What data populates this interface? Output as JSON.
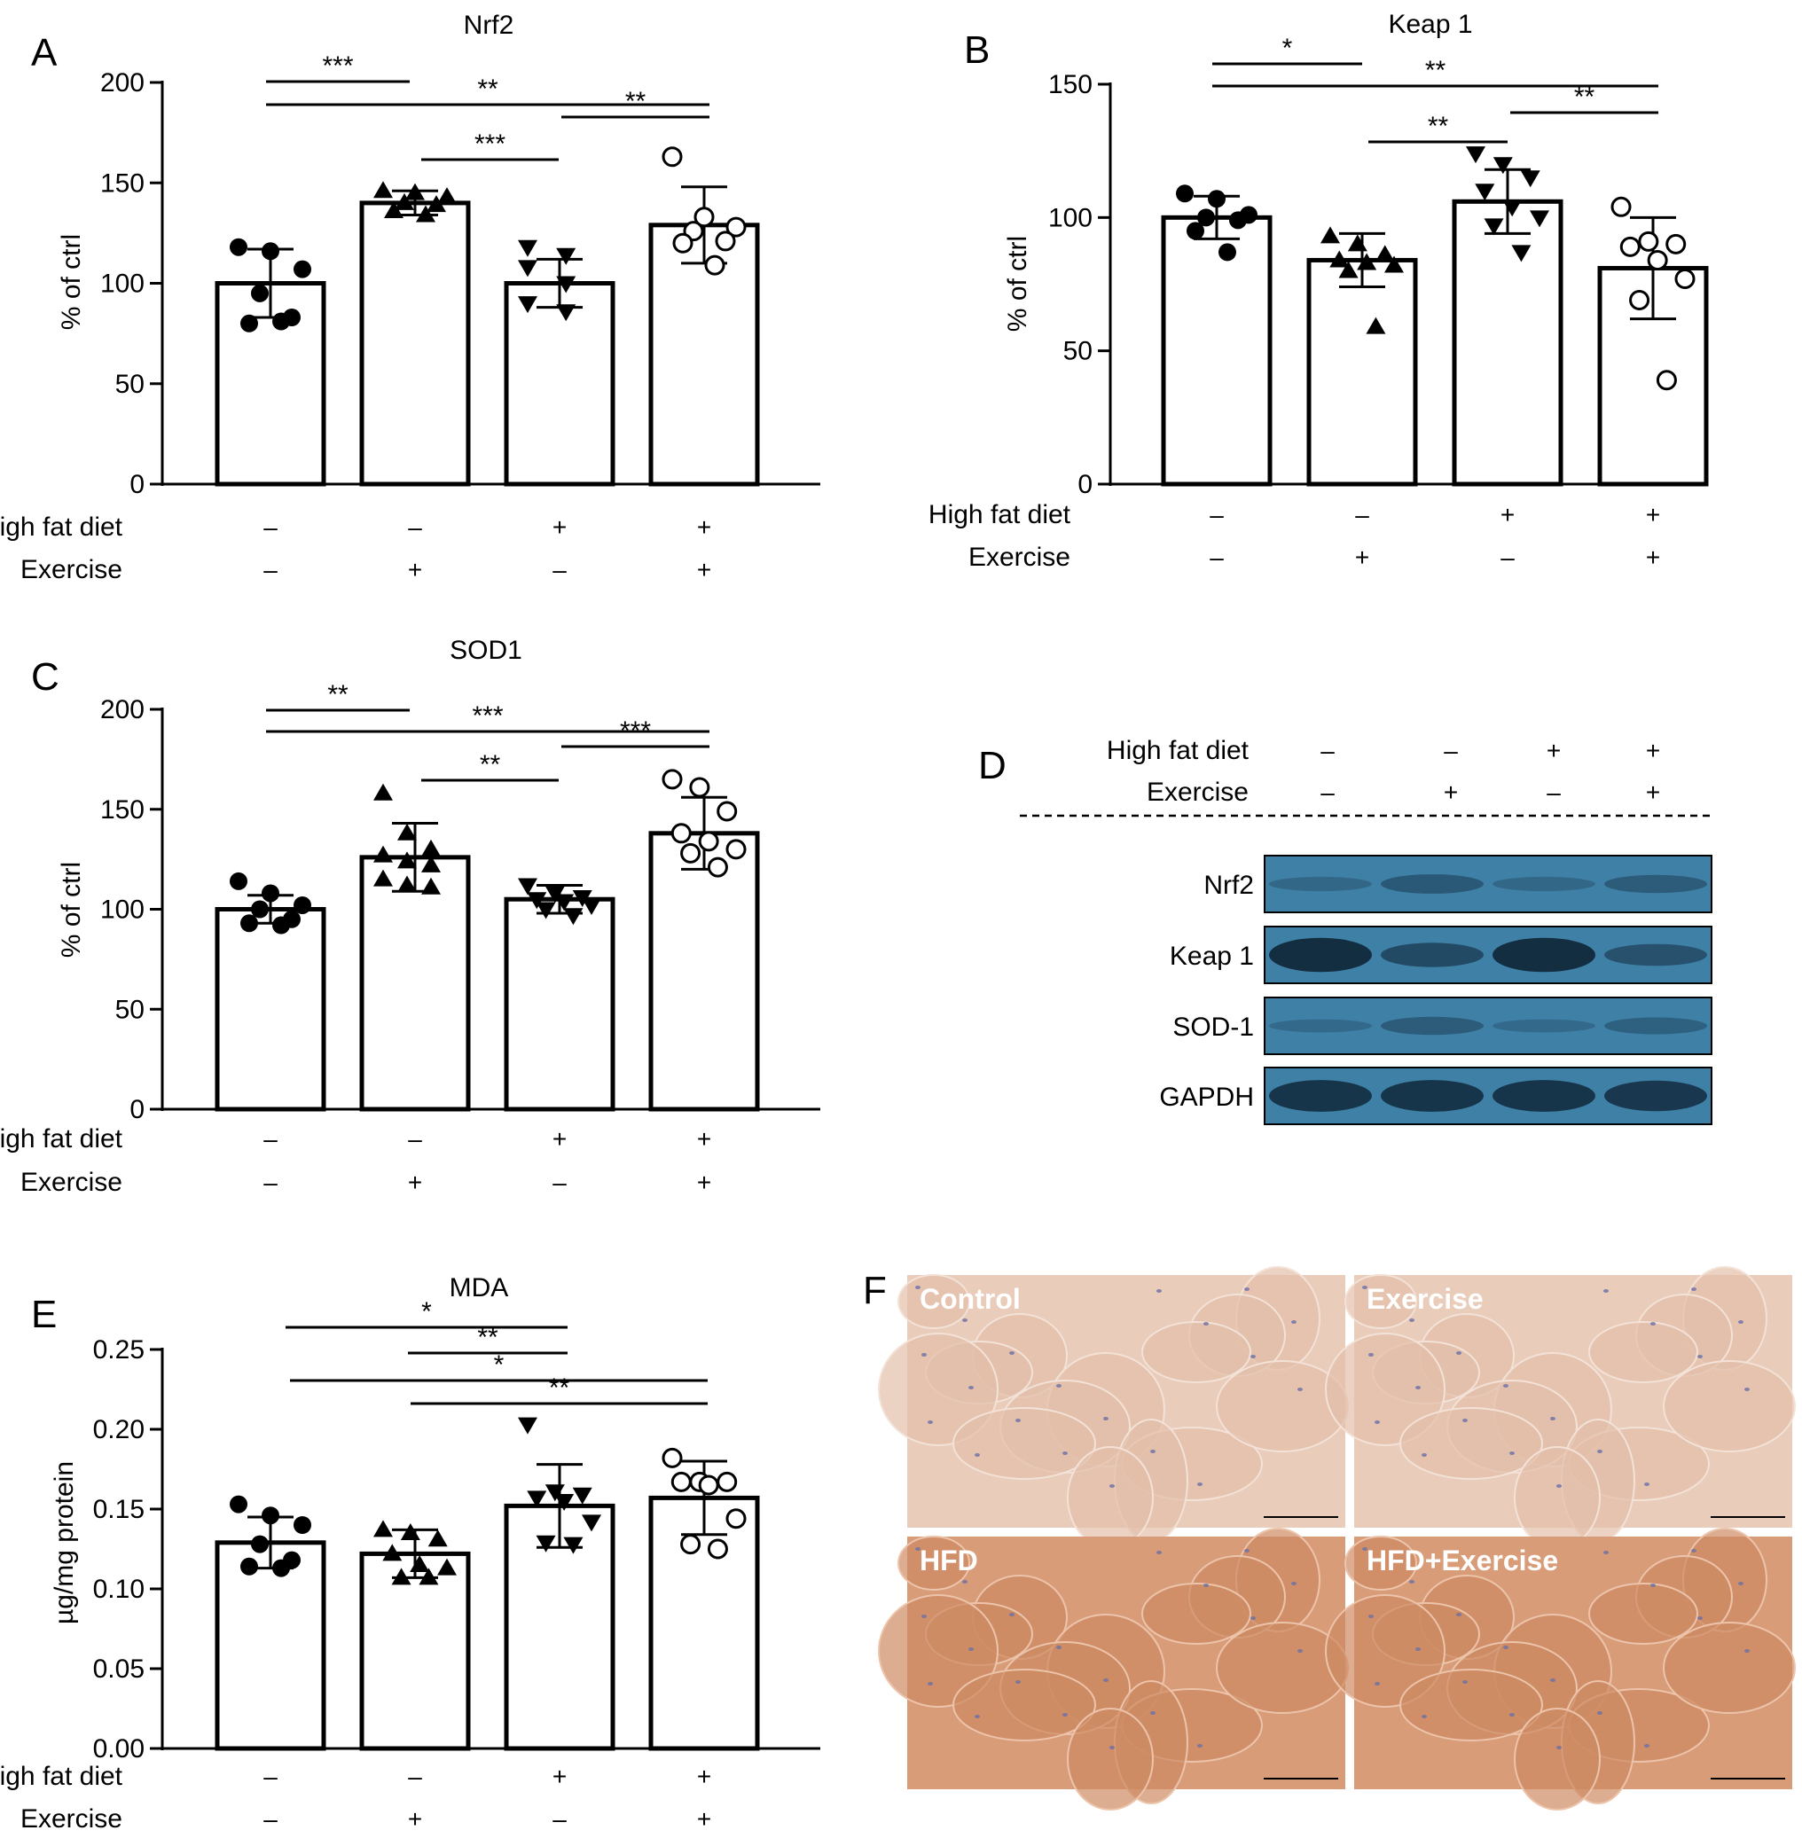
{
  "colors": {
    "ink": "#000000",
    "blot_bg": "#3f80a6",
    "band": "#0f2437",
    "tissue_light": "#e9ccba",
    "tissue_dark": "#d99c78"
  },
  "chart_data": [
    {
      "id": "A",
      "type": "bar",
      "panel_label": "A",
      "title": "Nrf2",
      "ylabel": "% of ctrl",
      "ylim": [
        0,
        200
      ],
      "yticks": [
        "0",
        "50",
        "100",
        "150",
        "200"
      ],
      "categories": [
        "ctrl",
        "ex",
        "hfd",
        "hfdex"
      ],
      "rows": [
        {
          "label": "High fat diet",
          "values": [
            "–",
            "–",
            "+",
            "+"
          ]
        },
        {
          "label": "Exercise",
          "values": [
            "–",
            "+",
            "–",
            "+"
          ]
        }
      ],
      "bars": [
        {
          "mean": 100,
          "sd": 17,
          "marker": "circle-filled",
          "points": [
            118,
            116,
            107,
            95,
            83,
            80,
            81
          ]
        },
        {
          "mean": 140,
          "sd": 6,
          "marker": "triangle-up",
          "points": [
            146,
            145,
            143,
            140,
            139,
            136,
            134
          ]
        },
        {
          "mean": 100,
          "sd": 12,
          "marker": "triangle-down",
          "points": [
            118,
            114,
            108,
            100,
            90,
            86
          ]
        },
        {
          "mean": 129,
          "sd": 19,
          "marker": "circle-open",
          "points": [
            163,
            133,
            128,
            126,
            121,
            120,
            109
          ]
        }
      ],
      "sig": [
        {
          "from": 0,
          "to": 1,
          "label": "***"
        },
        {
          "from": 0,
          "to": 3,
          "label": "**"
        },
        {
          "from": 1,
          "to": 2,
          "label": "***"
        },
        {
          "from": 2,
          "to": 3,
          "label": "**"
        }
      ]
    },
    {
      "id": "B",
      "type": "bar",
      "panel_label": "B",
      "title": "Keap 1",
      "ylabel": "% of ctrl",
      "ylim": [
        0,
        150
      ],
      "yticks": [
        "0",
        "50",
        "100",
        "150"
      ],
      "categories": [
        "ctrl",
        "ex",
        "hfd",
        "hfdex"
      ],
      "rows": [
        {
          "label": "High fat diet",
          "values": [
            "–",
            "–",
            "+",
            "+"
          ]
        },
        {
          "label": "Exercise",
          "values": [
            "–",
            "+",
            "–",
            "+"
          ]
        }
      ],
      "bars": [
        {
          "mean": 100,
          "sd": 8,
          "marker": "circle-filled",
          "points": [
            109,
            107,
            101,
            100,
            99,
            95,
            87
          ]
        },
        {
          "mean": 84,
          "sd": 10,
          "marker": "triangle-up",
          "points": [
            93,
            90,
            86,
            84,
            83,
            82,
            80,
            59
          ]
        },
        {
          "mean": 106,
          "sd": 12,
          "marker": "triangle-down",
          "points": [
            124,
            120,
            115,
            110,
            104,
            100,
            97,
            87
          ]
        },
        {
          "mean": 81,
          "sd": 19,
          "marker": "circle-open",
          "points": [
            104,
            91,
            90,
            89,
            84,
            77,
            69,
            39
          ]
        }
      ],
      "sig": [
        {
          "from": 0,
          "to": 1,
          "label": "*"
        },
        {
          "from": 0,
          "to": 3,
          "label": "**"
        },
        {
          "from": 1,
          "to": 2,
          "label": "**"
        },
        {
          "from": 2,
          "to": 3,
          "label": "**"
        }
      ]
    },
    {
      "id": "C",
      "type": "bar",
      "panel_label": "C",
      "title": "SOD1",
      "ylabel": "% of ctrl",
      "ylim": [
        0,
        200
      ],
      "yticks": [
        "0",
        "50",
        "100",
        "150",
        "200"
      ],
      "categories": [
        "ctrl",
        "ex",
        "hfd",
        "hfdex"
      ],
      "rows": [
        {
          "label": "High fat diet",
          "values": [
            "–",
            "–",
            "+",
            "+"
          ]
        },
        {
          "label": "Exercise",
          "values": [
            "–",
            "+",
            "–",
            "+"
          ]
        }
      ],
      "bars": [
        {
          "mean": 100,
          "sd": 7,
          "marker": "circle-filled",
          "points": [
            114,
            108,
            102,
            100,
            95,
            93,
            92
          ]
        },
        {
          "mean": 126,
          "sd": 17,
          "marker": "triangle-up",
          "points": [
            158,
            138,
            130,
            127,
            124,
            122,
            115,
            112,
            111
          ]
        },
        {
          "mean": 105,
          "sd": 7,
          "marker": "triangle-down",
          "points": [
            112,
            108,
            106,
            105,
            104,
            102,
            100,
            97
          ]
        },
        {
          "mean": 138,
          "sd": 18,
          "marker": "circle-open",
          "points": [
            165,
            161,
            149,
            138,
            134,
            130,
            128,
            121
          ]
        }
      ],
      "sig": [
        {
          "from": 0,
          "to": 1,
          "label": "**"
        },
        {
          "from": 0,
          "to": 3,
          "label": "***"
        },
        {
          "from": 1,
          "to": 2,
          "label": "**"
        },
        {
          "from": 2,
          "to": 3,
          "label": "***"
        }
      ]
    },
    {
      "id": "E",
      "type": "bar",
      "panel_label": "E",
      "title": "MDA",
      "ylabel": "µg/mg protein",
      "ylim": [
        0,
        0.25
      ],
      "yticks": [
        "0.00",
        "0.05",
        "0.10",
        "0.15",
        "0.20",
        "0.25"
      ],
      "categories": [
        "ctrl",
        "ex",
        "hfd",
        "hfdex"
      ],
      "rows": [
        {
          "label": "High fat diet",
          "values": [
            "–",
            "–",
            "+",
            "+"
          ]
        },
        {
          "label": "Exercise",
          "values": [
            "–",
            "+",
            "–",
            "+"
          ]
        }
      ],
      "bars": [
        {
          "mean": 0.129,
          "sd": 0.016,
          "marker": "circle-filled",
          "points": [
            0.153,
            0.146,
            0.14,
            0.128,
            0.118,
            0.114,
            0.113
          ]
        },
        {
          "mean": 0.122,
          "sd": 0.015,
          "marker": "triangle-up",
          "points": [
            0.137,
            0.135,
            0.131,
            0.122,
            0.115,
            0.113,
            0.107,
            0.107
          ]
        },
        {
          "mean": 0.152,
          "sd": 0.026,
          "marker": "triangle-down",
          "points": [
            0.203,
            0.161,
            0.159,
            0.157,
            0.155,
            0.142,
            0.129,
            0.128
          ]
        },
        {
          "mean": 0.157,
          "sd": 0.023,
          "marker": "circle-open",
          "points": [
            0.182,
            0.167,
            0.167,
            0.167,
            0.165,
            0.144,
            0.128,
            0.125
          ]
        }
      ],
      "sig": [
        {
          "from": 0,
          "to": 2,
          "label": "*"
        },
        {
          "from": 1,
          "to": 2,
          "label": "**"
        },
        {
          "from": 0,
          "to": 3,
          "label": "*"
        },
        {
          "from": 1,
          "to": 3,
          "label": "**"
        }
      ]
    }
  ],
  "blot": {
    "panel_label": "D",
    "header_rows": [
      {
        "label": "High fat diet",
        "values": [
          "–",
          "–",
          "+",
          "+"
        ]
      },
      {
        "label": "Exercise",
        "values": [
          "–",
          "+",
          "–",
          "+"
        ]
      }
    ],
    "rows": [
      {
        "label": "Nrf2",
        "band_strength": [
          0.15,
          0.35,
          0.15,
          0.3
        ]
      },
      {
        "label": "Keap 1",
        "band_strength": [
          0.95,
          0.55,
          0.95,
          0.45
        ]
      },
      {
        "label": "SOD-1",
        "band_strength": [
          0.1,
          0.3,
          0.1,
          0.25
        ]
      },
      {
        "label": "GAPDH",
        "band_strength": [
          0.85,
          0.85,
          0.85,
          0.8
        ]
      }
    ]
  },
  "histology": {
    "panel_label": "F",
    "tiles": [
      {
        "label": "Control",
        "tone": "light"
      },
      {
        "label": "Exercise",
        "tone": "light"
      },
      {
        "label": "HFD",
        "tone": "dark"
      },
      {
        "label": "HFD+Exercise",
        "tone": "dark"
      }
    ]
  }
}
